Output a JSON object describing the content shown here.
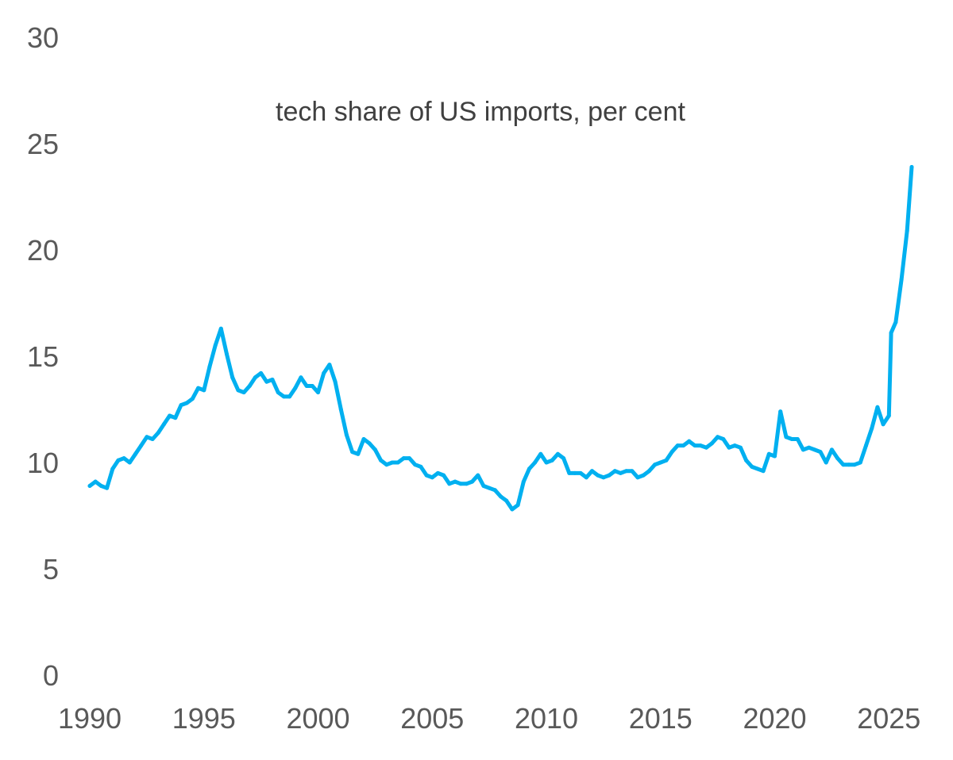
{
  "chart_data": {
    "type": "line",
    "title": "tech share of US imports, per cent",
    "xlabel": "",
    "ylabel": "",
    "xlim": [
      1990,
      2026.2
    ],
    "ylim": [
      0,
      30
    ],
    "x_ticks": [
      "1990",
      "1995",
      "2000",
      "2005",
      "2010",
      "2015",
      "2020",
      "2025"
    ],
    "y_ticks": [
      "0",
      "5",
      "10",
      "15",
      "20",
      "25",
      "30"
    ],
    "grid": false,
    "legend": "none",
    "series": [
      {
        "color": "#00b0f0",
        "points": [
          [
            1990.0,
            8.9
          ],
          [
            1990.25,
            9.1
          ],
          [
            1990.5,
            8.9
          ],
          [
            1990.75,
            8.8
          ],
          [
            1991.0,
            9.7
          ],
          [
            1991.25,
            10.1
          ],
          [
            1991.5,
            10.2
          ],
          [
            1991.75,
            10.0
          ],
          [
            1992.0,
            10.4
          ],
          [
            1992.25,
            10.8
          ],
          [
            1992.5,
            11.2
          ],
          [
            1992.75,
            11.1
          ],
          [
            1993.0,
            11.4
          ],
          [
            1993.25,
            11.8
          ],
          [
            1993.5,
            12.2
          ],
          [
            1993.75,
            12.1
          ],
          [
            1994.0,
            12.7
          ],
          [
            1994.25,
            12.8
          ],
          [
            1994.5,
            13.0
          ],
          [
            1994.75,
            13.5
          ],
          [
            1995.0,
            13.4
          ],
          [
            1995.25,
            14.5
          ],
          [
            1995.5,
            15.5
          ],
          [
            1995.75,
            16.3
          ],
          [
            1996.0,
            15.1
          ],
          [
            1996.25,
            14.0
          ],
          [
            1996.5,
            13.4
          ],
          [
            1996.75,
            13.3
          ],
          [
            1997.0,
            13.6
          ],
          [
            1997.25,
            14.0
          ],
          [
            1997.5,
            14.2
          ],
          [
            1997.75,
            13.8
          ],
          [
            1998.0,
            13.9
          ],
          [
            1998.25,
            13.3
          ],
          [
            1998.5,
            13.1
          ],
          [
            1998.75,
            13.1
          ],
          [
            1999.0,
            13.5
          ],
          [
            1999.25,
            14.0
          ],
          [
            1999.5,
            13.6
          ],
          [
            1999.75,
            13.6
          ],
          [
            2000.0,
            13.3
          ],
          [
            2000.25,
            14.2
          ],
          [
            2000.5,
            14.6
          ],
          [
            2000.75,
            13.8
          ],
          [
            2001.0,
            12.5
          ],
          [
            2001.25,
            11.3
          ],
          [
            2001.5,
            10.5
          ],
          [
            2001.75,
            10.4
          ],
          [
            2002.0,
            11.1
          ],
          [
            2002.25,
            10.9
          ],
          [
            2002.5,
            10.6
          ],
          [
            2002.75,
            10.1
          ],
          [
            2003.0,
            9.9
          ],
          [
            2003.25,
            10.0
          ],
          [
            2003.5,
            10.0
          ],
          [
            2003.75,
            10.2
          ],
          [
            2004.0,
            10.2
          ],
          [
            2004.25,
            9.9
          ],
          [
            2004.5,
            9.8
          ],
          [
            2004.75,
            9.4
          ],
          [
            2005.0,
            9.3
          ],
          [
            2005.25,
            9.5
          ],
          [
            2005.5,
            9.4
          ],
          [
            2005.75,
            9.0
          ],
          [
            2006.0,
            9.1
          ],
          [
            2006.25,
            9.0
          ],
          [
            2006.5,
            9.0
          ],
          [
            2006.75,
            9.1
          ],
          [
            2007.0,
            9.4
          ],
          [
            2007.25,
            8.9
          ],
          [
            2007.5,
            8.8
          ],
          [
            2007.75,
            8.7
          ],
          [
            2008.0,
            8.4
          ],
          [
            2008.25,
            8.2
          ],
          [
            2008.5,
            7.8
          ],
          [
            2008.75,
            8.0
          ],
          [
            2009.0,
            9.1
          ],
          [
            2009.25,
            9.7
          ],
          [
            2009.5,
            10.0
          ],
          [
            2009.75,
            10.4
          ],
          [
            2010.0,
            10.0
          ],
          [
            2010.25,
            10.1
          ],
          [
            2010.5,
            10.4
          ],
          [
            2010.75,
            10.2
          ],
          [
            2011.0,
            9.5
          ],
          [
            2011.25,
            9.5
          ],
          [
            2011.5,
            9.5
          ],
          [
            2011.75,
            9.3
          ],
          [
            2012.0,
            9.6
          ],
          [
            2012.25,
            9.4
          ],
          [
            2012.5,
            9.3
          ],
          [
            2012.75,
            9.4
          ],
          [
            2013.0,
            9.6
          ],
          [
            2013.25,
            9.5
          ],
          [
            2013.5,
            9.6
          ],
          [
            2013.75,
            9.6
          ],
          [
            2014.0,
            9.3
          ],
          [
            2014.25,
            9.4
          ],
          [
            2014.5,
            9.6
          ],
          [
            2014.75,
            9.9
          ],
          [
            2015.0,
            10.0
          ],
          [
            2015.25,
            10.1
          ],
          [
            2015.5,
            10.5
          ],
          [
            2015.75,
            10.8
          ],
          [
            2016.0,
            10.8
          ],
          [
            2016.25,
            11.0
          ],
          [
            2016.5,
            10.8
          ],
          [
            2016.75,
            10.8
          ],
          [
            2017.0,
            10.7
          ],
          [
            2017.25,
            10.9
          ],
          [
            2017.5,
            11.2
          ],
          [
            2017.75,
            11.1
          ],
          [
            2018.0,
            10.7
          ],
          [
            2018.25,
            10.8
          ],
          [
            2018.5,
            10.7
          ],
          [
            2018.75,
            10.1
          ],
          [
            2019.0,
            9.8
          ],
          [
            2019.25,
            9.7
          ],
          [
            2019.5,
            9.6
          ],
          [
            2019.75,
            10.4
          ],
          [
            2020.0,
            10.3
          ],
          [
            2020.25,
            12.4
          ],
          [
            2020.5,
            11.2
          ],
          [
            2020.75,
            11.1
          ],
          [
            2021.0,
            11.1
          ],
          [
            2021.25,
            10.6
          ],
          [
            2021.5,
            10.7
          ],
          [
            2021.75,
            10.6
          ],
          [
            2022.0,
            10.5
          ],
          [
            2022.25,
            10.0
          ],
          [
            2022.5,
            10.6
          ],
          [
            2022.75,
            10.2
          ],
          [
            2023.0,
            9.9
          ],
          [
            2023.25,
            9.9
          ],
          [
            2023.5,
            9.9
          ],
          [
            2023.75,
            10.0
          ],
          [
            2024.0,
            10.8
          ],
          [
            2024.25,
            11.6
          ],
          [
            2024.5,
            12.6
          ],
          [
            2024.75,
            11.8
          ],
          [
            2025.0,
            12.2
          ],
          [
            2025.1,
            16.1
          ],
          [
            2025.3,
            16.6
          ],
          [
            2025.55,
            18.6
          ],
          [
            2025.8,
            20.9
          ],
          [
            2026.0,
            23.9
          ]
        ]
      }
    ]
  }
}
